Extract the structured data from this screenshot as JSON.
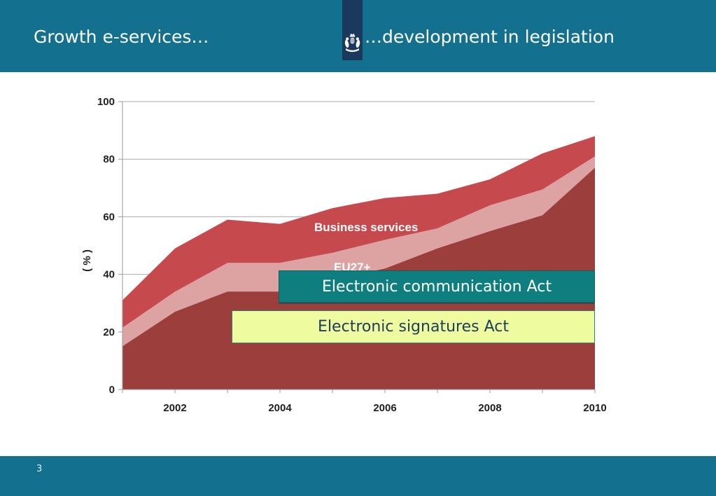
{
  "header": {
    "title_left": "Growth e-services…",
    "title_right": "…development in legislation",
    "logo_icon": "dutch-government-coat-of-arms",
    "bg_color": "#13708F",
    "logo_bg_color": "#1A395C"
  },
  "footer": {
    "page_number": "3",
    "bg_color": "#13708F"
  },
  "overlays": [
    {
      "label": "Electronic communication Act",
      "bg": "#0F7E7E",
      "text_color": "#FFFFFF"
    },
    {
      "label": "Electronic signatures Act",
      "bg": "#EEFB9F",
      "text_color": "#1C3D5C"
    }
  ],
  "chart_data": {
    "type": "area",
    "title": "",
    "xlabel": "",
    "ylabel": "( % )",
    "ylim": [
      0,
      100
    ],
    "yticks": [
      0,
      20,
      40,
      60,
      80,
      100
    ],
    "grid": true,
    "legend": "inline-labels",
    "x": [
      2001,
      2002,
      2003,
      2004,
      2005,
      2006,
      2007,
      2008,
      2009,
      2010
    ],
    "xticks_labeled": [
      2002,
      2004,
      2006,
      2008,
      2010
    ],
    "series": [
      {
        "name": "Business services",
        "color": "#C64A4D",
        "values": [
          31,
          49,
          59,
          57.5,
          63,
          66.5,
          68,
          73,
          82,
          88
        ]
      },
      {
        "name": "EU27+",
        "color": "#DDA3A3",
        "values": [
          21.5,
          34,
          44,
          44,
          47.5,
          52,
          56,
          64,
          69.5,
          81
        ]
      },
      {
        "name": "",
        "color": "#9B3E3C",
        "values": [
          15,
          27,
          34,
          34,
          38,
          42,
          49,
          55,
          60.5,
          77
        ]
      }
    ],
    "axis_color": "#9A9A9A",
    "grid_color": "#ADADAD"
  }
}
